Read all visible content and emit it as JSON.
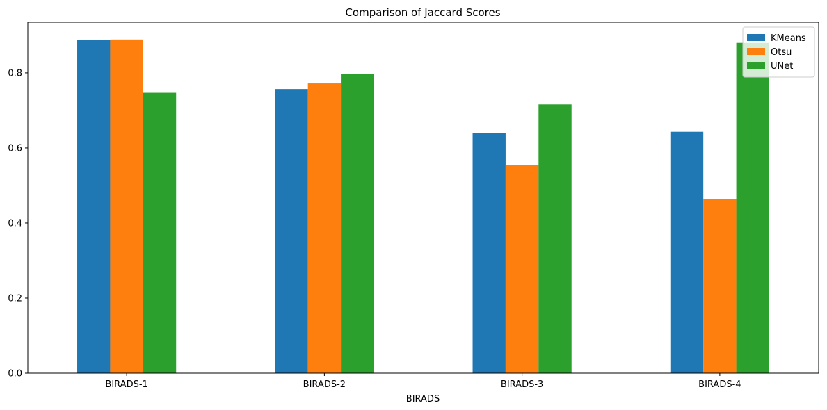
{
  "chart_data": {
    "type": "bar",
    "title": "Comparison of Jaccard Scores",
    "xlabel": "BIRADS",
    "ylabel": "",
    "categories": [
      "BIRADS-1",
      "BIRADS-2",
      "BIRADS-3",
      "BIRADS-4"
    ],
    "series": [
      {
        "name": "KMeans",
        "color": "#1f77b4",
        "values": [
          0.887,
          0.757,
          0.64,
          0.643
        ]
      },
      {
        "name": "Otsu",
        "color": "#ff7f0e",
        "values": [
          0.889,
          0.772,
          0.555,
          0.464
        ]
      },
      {
        "name": "UNet",
        "color": "#2ca02c",
        "values": [
          0.747,
          0.797,
          0.716,
          0.88
        ]
      }
    ],
    "ylim": [
      0,
      0.935
    ],
    "yticks": [
      0.0,
      0.2,
      0.4,
      0.6,
      0.8
    ],
    "ytick_labels": [
      "0.0",
      "0.2",
      "0.4",
      "0.6",
      "0.8"
    ],
    "grid": false,
    "legend_position": "top-right"
  }
}
